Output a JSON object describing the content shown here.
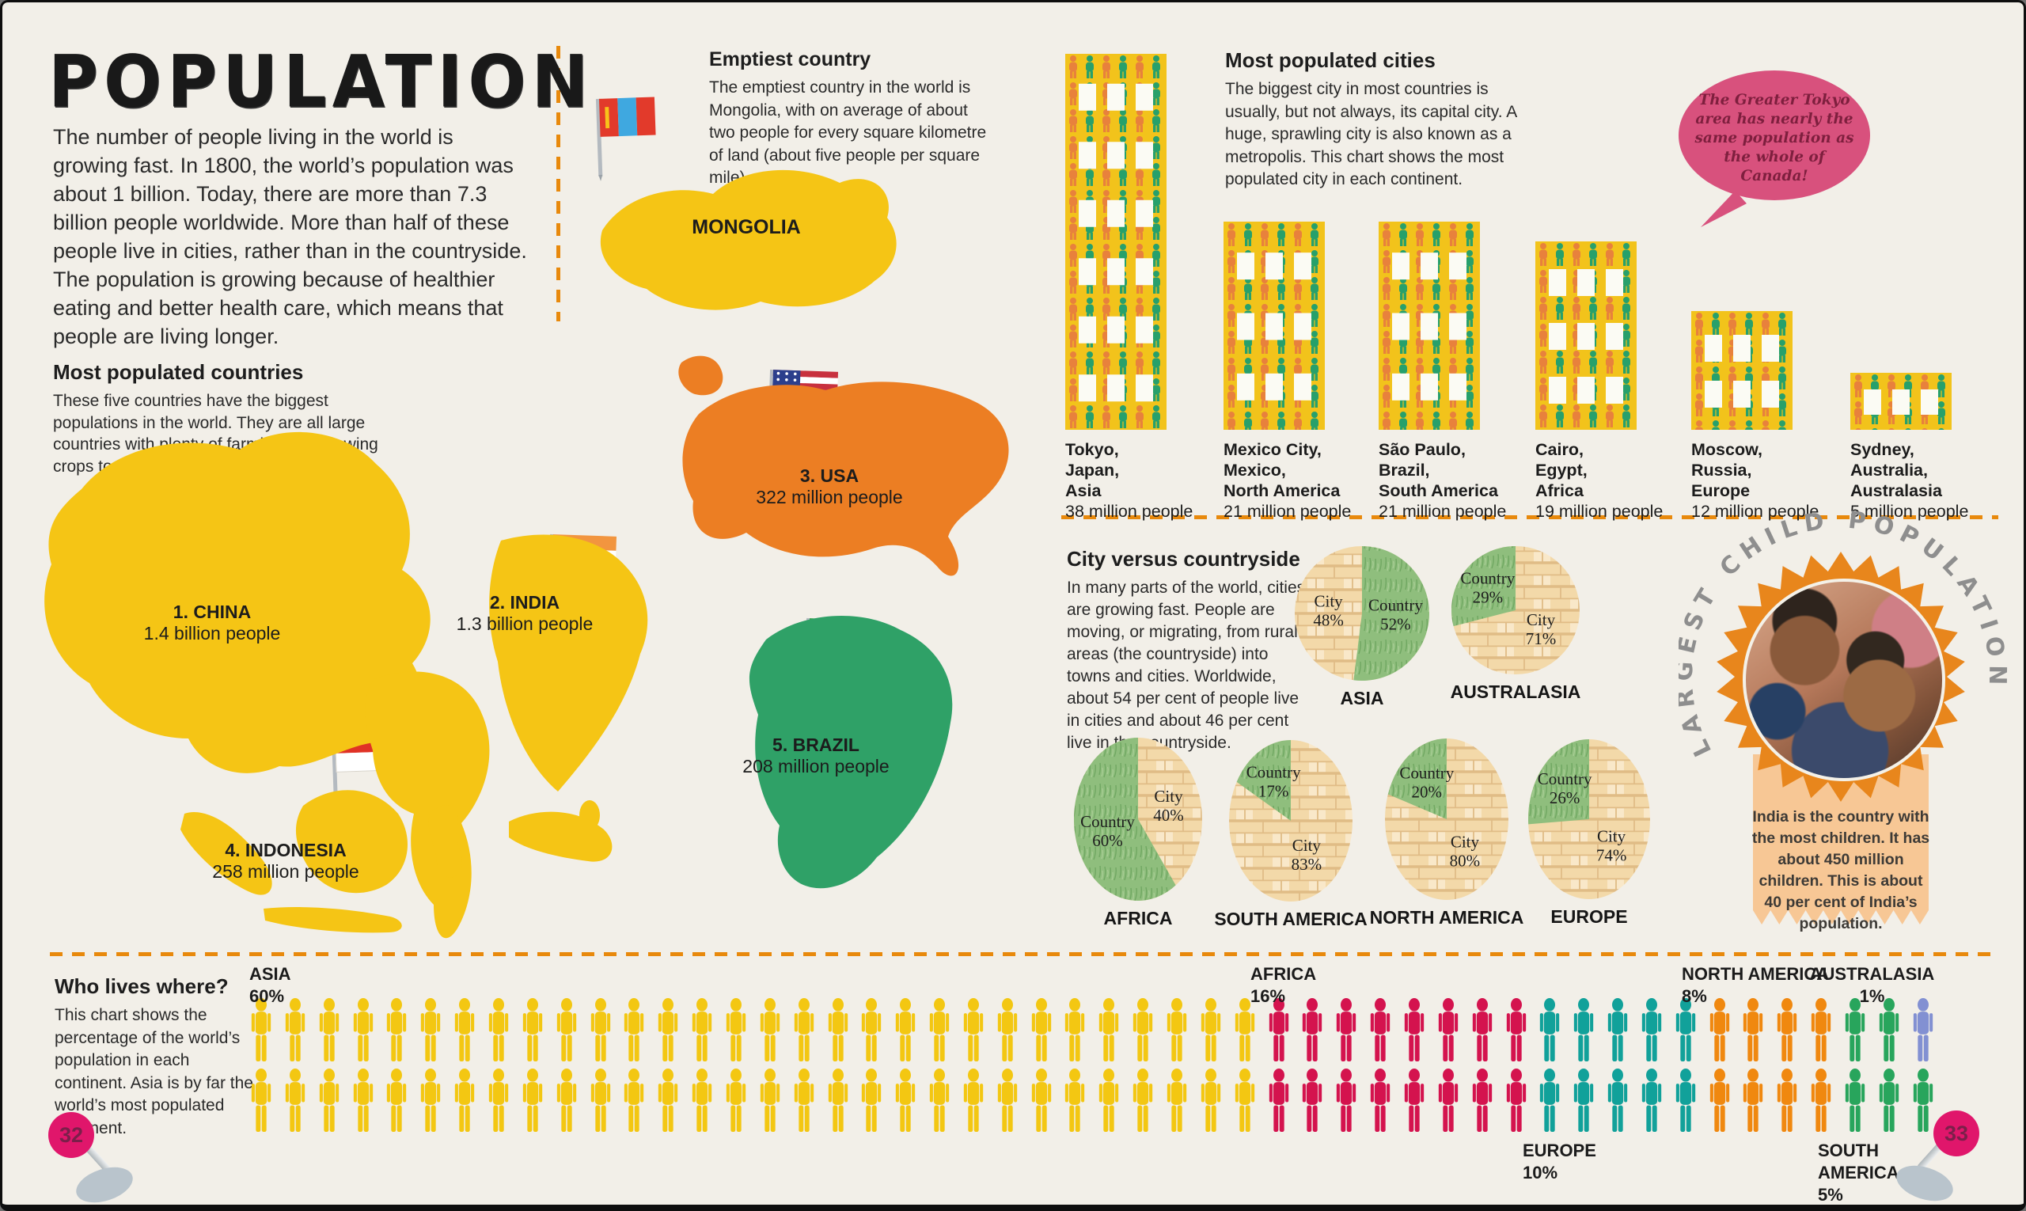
{
  "page": {
    "background": "#F2EFE8",
    "accent_orange": "#E8890C",
    "title": "POPULATION",
    "intro": "The number of people living in the world is growing fast. In 1800, the world’s population was about 1 billion. Today, there are more than 7.3 billion people worldwide. More than half of these people live in cities, rather than in the countryside. The population is growing because of healthier eating and better health care, which means that people are living longer.",
    "page_number_left": "32",
    "page_number_right": "33"
  },
  "emptiest_country": {
    "heading": "Emptiest country",
    "body": "The emptiest country in the world is Mongolia, with on average of about two people for every square kilometre of land (about five people per square mile).",
    "map_label": "MONGOLIA",
    "map_color": "#F5C515"
  },
  "most_populated_countries": {
    "heading": "Most populated countries",
    "body": "These five countries have the biggest populations in the world. They are all large countries with plenty of farmland for growing crops to feed people.",
    "countries": [
      {
        "label": "1. CHINA",
        "population": "1.4 billion people",
        "map_color": "#F5C515"
      },
      {
        "label": "2. INDIA",
        "population": "1.3 billion people",
        "map_color": "#F5C515"
      },
      {
        "label": "3. USA",
        "population": "322 million people",
        "map_color": "#EC7E23"
      },
      {
        "label": "4. INDONESIA",
        "population": "258 million people",
        "map_color": "#F5C515"
      },
      {
        "label": "5. BRAZIL",
        "population": "208 million people",
        "map_color": "#2FA167"
      }
    ]
  },
  "most_populated_cities": {
    "heading": "Most populated cities",
    "body": "The biggest city in most countries is usually, but not always, its capital city. A huge, sprawling city is also known as a metropolis. This chart shows the most populated city in each continent.",
    "cities": [
      {
        "lines": [
          "Tokyo,",
          "Japan,",
          "Asia"
        ],
        "population": "38 million people",
        "value": 38
      },
      {
        "lines": [
          "Mexico City,",
          "Mexico,",
          "North America"
        ],
        "population": "21 million people",
        "value": 21
      },
      {
        "lines": [
          "São Paulo,",
          "Brazil,",
          "South America"
        ],
        "population": "21 million people",
        "value": 21
      },
      {
        "lines": [
          "Cairo,",
          "Egypt,",
          "Africa"
        ],
        "population": "19 million people",
        "value": 19
      },
      {
        "lines": [
          "Moscow,",
          "Russia,",
          "Europe"
        ],
        "population": "12 million people",
        "value": 12
      },
      {
        "lines": [
          "Sydney,",
          "Australia,",
          "Australasia"
        ],
        "population": "5 million people",
        "value": 5
      }
    ]
  },
  "speech_bubble": {
    "text": "The Greater Tokyo area has nearly the same population as the whole of Canada!",
    "color": "#D8517D"
  },
  "city_vs_countryside": {
    "heading": "City versus countryside",
    "body": "In many parts of the world, cities are growing fast. People are moving, or migrating, from rural areas (the countryside) into towns and cities. Worldwide, about 54 per cent of people live in cities and about 46 per cent live in the countryside.",
    "city_label": "City",
    "country_label": "Country"
  },
  "largest_child_population": {
    "arc_title": "LARGEST CHILD POPULATION",
    "body": "India is the country with the most children. It has about 450 million children. This is about 40 per cent of India’s population.",
    "badge_color": "#E8861C",
    "ribbon_color": "#F7C795"
  },
  "who_lives_where": {
    "heading": "Who lives where?",
    "body": "This chart shows the percentage of the world’s population in each continent. Asia is by far the world’s most populated continent.",
    "segments": [
      {
        "name": "ASIA",
        "percent": "60%",
        "count": 60,
        "color": "#F3C712"
      },
      {
        "name": "AFRICA",
        "percent": "16%",
        "count": 16,
        "color": "#D4134E"
      },
      {
        "name": "EUROPE",
        "percent": "10%",
        "count": 10,
        "color": "#11A19A"
      },
      {
        "name": "NORTH AMERICA",
        "percent": "8%",
        "count": 8,
        "color": "#F0880F"
      },
      {
        "name": "SOUTH AMERICA",
        "percent": "5%",
        "count": 5,
        "color": "#28A55C"
      },
      {
        "name": "AUSTRALASIA",
        "percent": "1%",
        "count": 1,
        "color": "#8290D2"
      }
    ]
  },
  "chart_data": [
    {
      "type": "bar",
      "title": "Most populated cities",
      "categories": [
        "Tokyo, Japan, Asia",
        "Mexico City, Mexico, North America",
        "São Paulo, Brazil, South America",
        "Cairo, Egypt, Africa",
        "Moscow, Russia, Europe",
        "Sydney, Australia, Australasia"
      ],
      "values": [
        38,
        21,
        21,
        19,
        12,
        5
      ],
      "unit": "million people",
      "ylabel": "",
      "xlabel": ""
    },
    {
      "type": "pie",
      "title": "City versus countryside",
      "series": [
        {
          "continent": "ASIA",
          "city": 48,
          "country": 52,
          "country_first": true
        },
        {
          "continent": "AUSTRALASIA",
          "city": 71,
          "country": 29,
          "country_first": false
        },
        {
          "continent": "AFRICA",
          "city": 40,
          "country": 60,
          "country_first": false
        },
        {
          "continent": "SOUTH AMERICA",
          "city": 83,
          "country": 17,
          "country_first": false
        },
        {
          "continent": "NORTH AMERICA",
          "city": 80,
          "country": 20,
          "country_first": false
        },
        {
          "continent": "EUROPE",
          "city": 74,
          "country": 26,
          "country_first": false
        }
      ]
    },
    {
      "type": "pictogram",
      "title": "Who lives where?",
      "categories": [
        "ASIA",
        "AFRICA",
        "EUROPE",
        "NORTH AMERICA",
        "SOUTH AMERICA",
        "AUSTRALASIA"
      ],
      "values": [
        60,
        16,
        10,
        8,
        5,
        1
      ],
      "unit": "percent of world population"
    }
  ]
}
